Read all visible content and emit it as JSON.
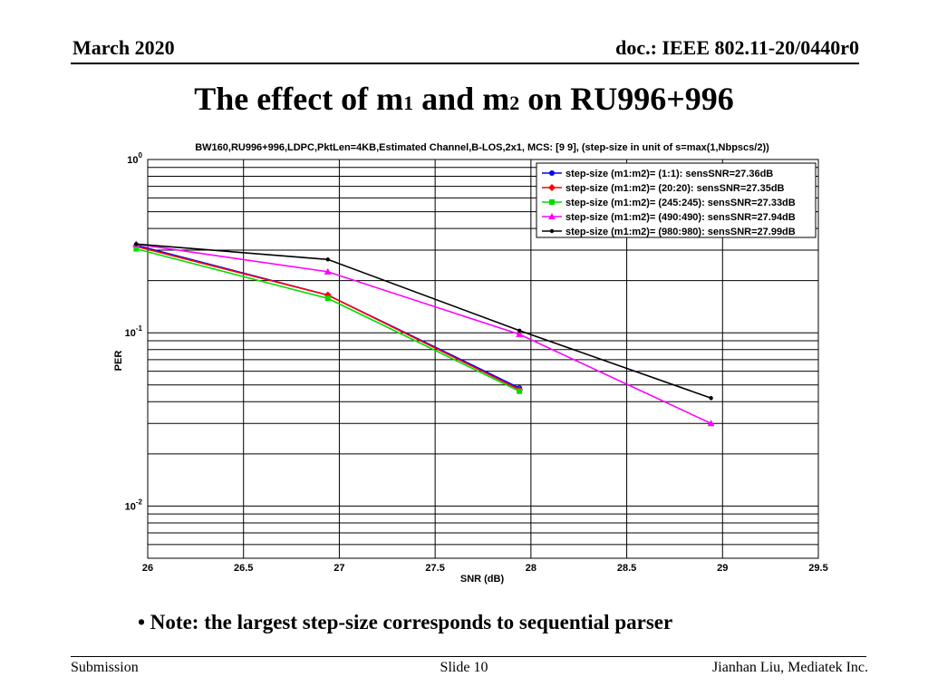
{
  "header": {
    "left": "March 2020",
    "right": "doc.: IEEE 802.11-20/0440r0"
  },
  "slide_title": {
    "part1": "The effect of m",
    "sub1": "1",
    "part2": " and m",
    "sub2": "2",
    "part3": " on RU996+996"
  },
  "note": "• Note: the largest step-size corresponds to sequential parser",
  "footer": {
    "left": "Submission",
    "center": "Slide 10",
    "right": "Jianhan Liu, Mediatek Inc."
  },
  "chart_data": {
    "type": "line",
    "title": "BW160,RU996+996,LDPC,PktLen=4KB,Estimated Channel,B-LOS,2x1, MCS: [9  9], (step-size in unit of s=max(1,Nbpscs/2))",
    "xlabel": "SNR (dB)",
    "ylabel": "PER",
    "xlim": [
      26,
      29.5
    ],
    "ylim": [
      0.005,
      1
    ],
    "yscale": "log",
    "grid": true,
    "legend_position": "top-right",
    "x_ticks": [
      "26",
      "26.5",
      "27",
      "27.5",
      "28",
      "28.5",
      "29",
      "29.5"
    ],
    "y_ticks": [
      {
        "base": "10",
        "exp": "0",
        "value": 1
      },
      {
        "base": "10",
        "exp": "-1",
        "value": 0.1
      },
      {
        "base": "10",
        "exp": "-2",
        "value": 0.01
      }
    ],
    "series": [
      {
        "name": "step-size (m1:m2)= (1:1):   sensSNR=27.36dB",
        "color": "#0000ff",
        "marker": "circle",
        "x": [
          25.94,
          26.94,
          27.94
        ],
        "y": [
          0.32,
          0.165,
          0.048
        ]
      },
      {
        "name": "step-size (m1:m2)= (20:20):   sensSNR=27.35dB",
        "color": "#ff0000",
        "marker": "diamond",
        "x": [
          25.94,
          26.94,
          27.94
        ],
        "y": [
          0.315,
          0.165,
          0.047
        ]
      },
      {
        "name": "step-size (m1:m2)= (245:245):   sensSNR=27.33dB",
        "color": "#00dd00",
        "marker": "square",
        "x": [
          25.94,
          26.94,
          27.94
        ],
        "y": [
          0.305,
          0.158,
          0.046
        ]
      },
      {
        "name": "step-size (m1:m2)= (490:490):   sensSNR=27.94dB",
        "color": "#ff00ff",
        "marker": "triangle",
        "x": [
          25.94,
          26.94,
          27.94,
          28.94
        ],
        "y": [
          0.325,
          0.225,
          0.098,
          0.03
        ]
      },
      {
        "name": "step-size (m1:m2)= (980:980):   sensSNR=27.99dB",
        "color": "#000000",
        "marker": "dot",
        "x": [
          25.94,
          26.94,
          27.94,
          28.94
        ],
        "y": [
          0.325,
          0.265,
          0.103,
          0.042
        ]
      }
    ]
  }
}
